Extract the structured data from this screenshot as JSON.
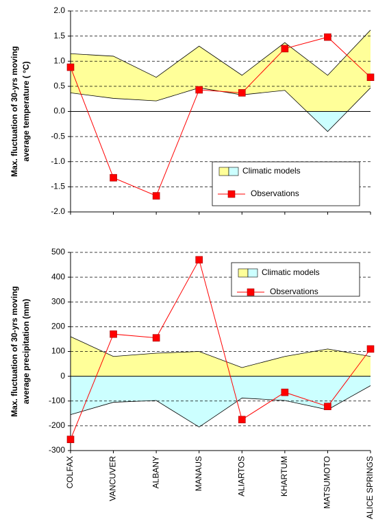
{
  "chart_data": [
    {
      "type": "band-line",
      "y_label": [
        "Max. fluctuation of 30-yrs moving",
        "average temperature (  °C)"
      ],
      "ylim": [
        -2.0,
        2.0
      ],
      "yticks": [
        {
          "value": 2.0,
          "label": "2.0"
        },
        {
          "value": 1.5,
          "label": "1.5"
        },
        {
          "value": 1.0,
          "label": "1.0"
        },
        {
          "value": 0.5,
          "label": "0.5"
        },
        {
          "value": 0,
          "label": "0.0"
        },
        {
          "value": -0.5,
          "label": "-0.5"
        },
        {
          "value": -1.0,
          "label": "-1.0"
        },
        {
          "value": -1.5,
          "label": "-1.5"
        },
        {
          "value": -2.0,
          "label": "-2.0"
        }
      ],
      "grid": true,
      "series": [
        {
          "name": "Climatic models",
          "color": "#ffff99",
          "negative_color": "#ccffff",
          "values": [
            1.15,
            1.1,
            0.68,
            1.3,
            0.72,
            1.37,
            0.72,
            1.62
          ],
          "lower": [
            0.37,
            0.26,
            0.21,
            0.47,
            0.33,
            0.42,
            -0.4,
            0.47
          ]
        },
        {
          "name": "Observations",
          "color": "#ff0000",
          "values": [
            0.88,
            -1.32,
            -1.68,
            0.43,
            0.37,
            1.25,
            1.48,
            0.68
          ]
        }
      ]
    },
    {
      "type": "band-line",
      "y_label": [
        "Max. fluctuation of 30-yrs moving",
        "average precipitation (mm)"
      ],
      "categories": [
        "COLFAX",
        "VANCUVER",
        "ALBANY",
        "MANAUS",
        "ALIARTOS",
        "KHARTUM",
        "MATSUMOTO",
        "ALICE SPRINGS"
      ],
      "ylim": [
        -300,
        500
      ],
      "yticks": [
        500,
        400,
        300,
        200,
        100,
        0,
        -100,
        -200,
        -300
      ],
      "grid": true,
      "series": [
        {
          "name": "Climatic models",
          "color": "#ffff99",
          "negative_color": "#ccffff",
          "values": [
            160,
            80,
            93,
            100,
            35,
            80,
            110,
            80
          ],
          "lower": [
            -155,
            -105,
            -98,
            -205,
            -88,
            -98,
            -135,
            -38
          ]
        },
        {
          "name": "Observations",
          "color": "#ff0000",
          "values": [
            -255,
            170,
            155,
            470,
            -175,
            -65,
            -122,
            110
          ]
        }
      ]
    }
  ]
}
